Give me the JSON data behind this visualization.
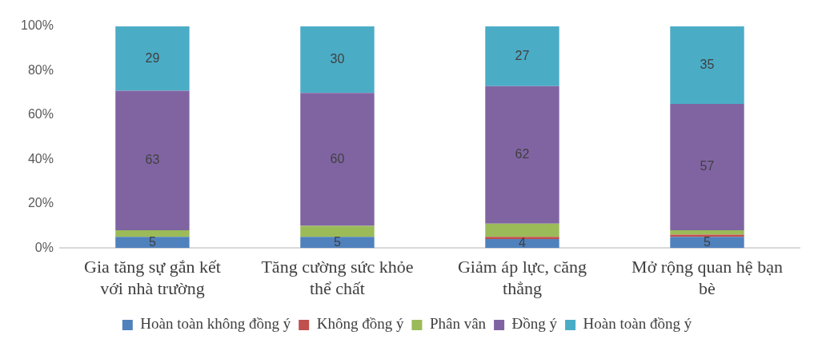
{
  "chart_data": {
    "type": "bar",
    "stacked": true,
    "categories": [
      "Gia tăng sự gắn kết với nhà trường",
      "Tăng cường sức khỏe thể chất",
      "Giảm áp lực, căng thẳng",
      "Mở rộng quan hệ bạn bè"
    ],
    "series": [
      {
        "name": "Hoàn toàn không đồng ý",
        "color": "#4f81bd",
        "values": [
          5,
          5,
          4,
          5
        ],
        "value_labels": [
          "5",
          "5",
          "4",
          "5"
        ]
      },
      {
        "name": "Không đồng ý",
        "color": "#c0504d",
        "values": [
          0,
          0,
          1,
          1
        ]
      },
      {
        "name": "Phân vân",
        "color": "#9bbb59",
        "values": [
          3,
          5,
          6,
          2
        ]
      },
      {
        "name": "Đồng ý",
        "color": "#8064a2",
        "values": [
          63,
          60,
          62,
          57
        ],
        "value_labels": [
          "63",
          "60",
          "62",
          "57"
        ]
      },
      {
        "name": "Hoàn toàn đồng ý",
        "color": "#4bacc6",
        "values": [
          29,
          30,
          27,
          35
        ],
        "value_labels": [
          "29",
          "30",
          "27",
          "35"
        ]
      }
    ],
    "ylim": [
      0,
      100
    ],
    "yticks": [
      {
        "value": 0,
        "label": "0%"
      },
      {
        "value": 20,
        "label": "20%"
      },
      {
        "value": 40,
        "label": "40%"
      },
      {
        "value": 60,
        "label": "60%"
      },
      {
        "value": 80,
        "label": "80%"
      },
      {
        "value": 100,
        "label": "100%"
      }
    ],
    "grid": false,
    "legend": "bottom"
  }
}
